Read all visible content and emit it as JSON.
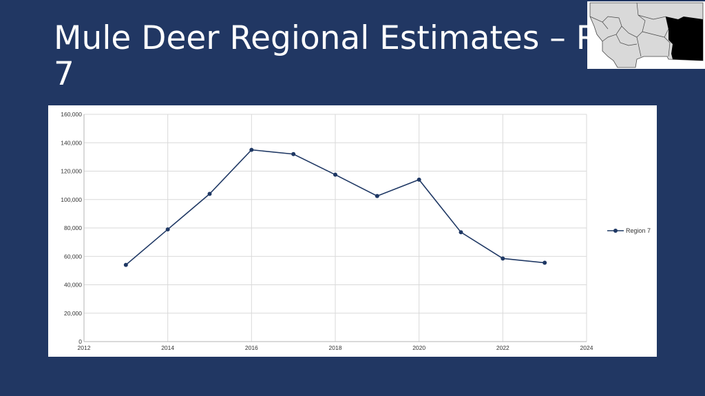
{
  "slide": {
    "title": "Mule Deer Regional Estimates – Region 7"
  },
  "map": {
    "icon": "montana-regions-map",
    "highlight_color": "#000000",
    "region_fill": "#d9d9d9"
  },
  "chart_data": {
    "type": "line",
    "title": "",
    "xlabel": "",
    "ylabel": "",
    "xlim": [
      2012,
      2024
    ],
    "ylim": [
      0,
      160000
    ],
    "x_ticks": [
      "2012",
      "2014",
      "2016",
      "2018",
      "2020",
      "2022",
      "2024"
    ],
    "y_ticks": [
      "0",
      "20,000",
      "40,000",
      "60,000",
      "80,000",
      "100,000",
      "120,000",
      "140,000",
      "160,000"
    ],
    "grid": true,
    "legend_position": "right",
    "series": [
      {
        "name": "Region 7",
        "color": "#1f3864",
        "x": [
          2013,
          2014,
          2015,
          2016,
          2017,
          2018,
          2019,
          2020,
          2021,
          2022,
          2023
        ],
        "y": [
          54000,
          79000,
          104000,
          135000,
          132000,
          117500,
          102500,
          114000,
          77000,
          58500,
          55500
        ]
      }
    ]
  }
}
